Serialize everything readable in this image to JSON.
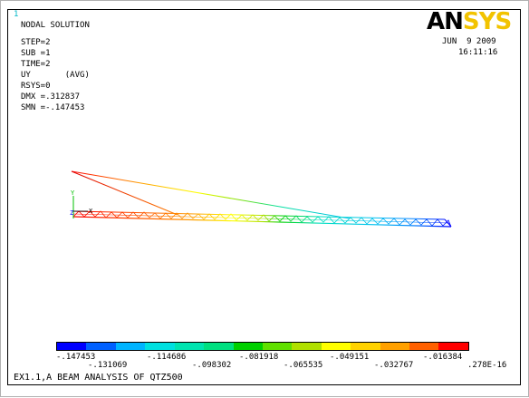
{
  "window_number": "1",
  "title": "NODAL SOLUTION",
  "info_lines": [
    "STEP=2",
    "SUB =1",
    "TIME=2",
    "UY       (AVG)",
    "RSYS=0",
    "DMX =.312837",
    "SMN =-.147453"
  ],
  "logo": {
    "part1": "AN",
    "part2": "SYS"
  },
  "date": "JUN  9 2009",
  "time": "16:11:16",
  "axis_labels": {
    "y": "Y",
    "z": "Z",
    "x": "X"
  },
  "legend": {
    "colors": [
      "#0000ff",
      "#0060ff",
      "#00b4ff",
      "#00e0e0",
      "#00e4b0",
      "#00e080",
      "#00d000",
      "#60e000",
      "#b0e000",
      "#ffff00",
      "#ffd200",
      "#ffa000",
      "#ff6000",
      "#ff0000"
    ],
    "labels_top": [
      "-.147453",
      "-.114686",
      "-.081918",
      "-.049151",
      "-.016384"
    ],
    "labels_bottom": [
      "-.131069",
      "-.098302",
      "-.065535",
      "-.032767",
      ".278E-16"
    ]
  },
  "caption": "EX1.1,A BEAM ANALYSIS OF QTZ500"
}
